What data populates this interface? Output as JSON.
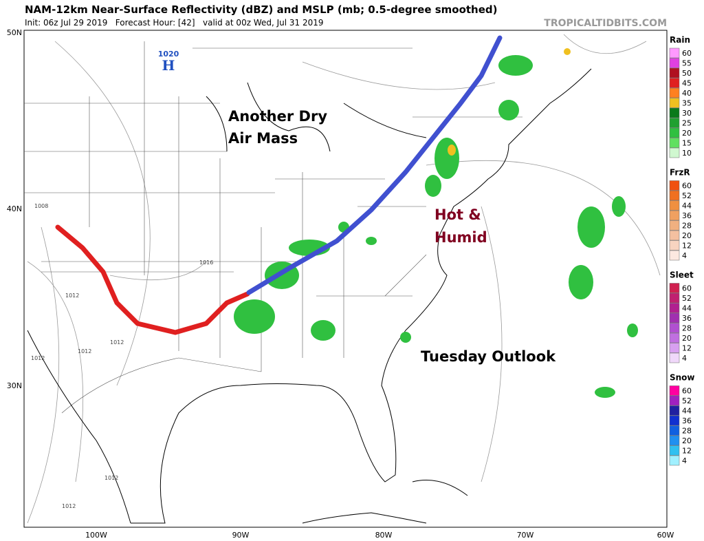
{
  "header": {
    "title": "NAM-12km Near-Surface Reflectivity (dBZ) and MSLP (mb; 0.5-degree smoothed)",
    "subtitle": "Init: 06z Jul 29 2019   Forecast Hour: [42]   valid at 00z Wed, Jul 31 2019",
    "source": "TROPICALTIDBITS.COM"
  },
  "map": {
    "lat_labels": [
      "50N",
      "40N",
      "30N"
    ],
    "lon_labels": [
      "100W",
      "90W",
      "80W",
      "70W",
      "60W"
    ],
    "high_pressure": "1020",
    "high_symbol": "H",
    "isobar_labels": [
      "1008",
      "1016",
      "1012",
      "1012",
      "1012",
      "1012",
      "1012",
      "1012"
    ],
    "annotations": {
      "dry": [
        "Another Dry",
        "Air Mass"
      ],
      "hot": [
        "Hot &",
        "Humid"
      ],
      "outlook": "Tuesday Outlook"
    }
  },
  "legends": [
    {
      "title": "Rain",
      "labels": [
        "60",
        "55",
        "50",
        "45",
        "40",
        "35",
        "30",
        "25",
        "20",
        "15",
        "10"
      ],
      "colors": [
        "#ff99ff",
        "#e040e0",
        "#b01020",
        "#e02020",
        "#ff8020",
        "#f0c020",
        "#0a7a1a",
        "#20a030",
        "#30c040",
        "#60e060",
        "#d0f8d0"
      ]
    },
    {
      "title": "FrzR",
      "labels": [
        "60",
        "52",
        "44",
        "36",
        "28",
        "20",
        "12",
        "4"
      ],
      "colors": [
        "#f05010",
        "#f07020",
        "#f09040",
        "#f0a060",
        "#f0b080",
        "#f4c0a0",
        "#f8d4c0",
        "#fce8e0"
      ]
    },
    {
      "title": "Sleet",
      "labels": [
        "60",
        "52",
        "44",
        "36",
        "28",
        "20",
        "12",
        "4"
      ],
      "colors": [
        "#d02050",
        "#c02070",
        "#b02090",
        "#a030b0",
        "#b050d0",
        "#c070e0",
        "#d8a0f0",
        "#f0d8fa"
      ]
    },
    {
      "title": "Snow",
      "labels": [
        "60",
        "52",
        "44",
        "36",
        "28",
        "20",
        "12",
        "4"
      ],
      "colors": [
        "#ff00a0",
        "#a020c0",
        "#2020a0",
        "#1030d0",
        "#1060e0",
        "#2090f0",
        "#30c0f0",
        "#a0f0ff"
      ]
    }
  ]
}
